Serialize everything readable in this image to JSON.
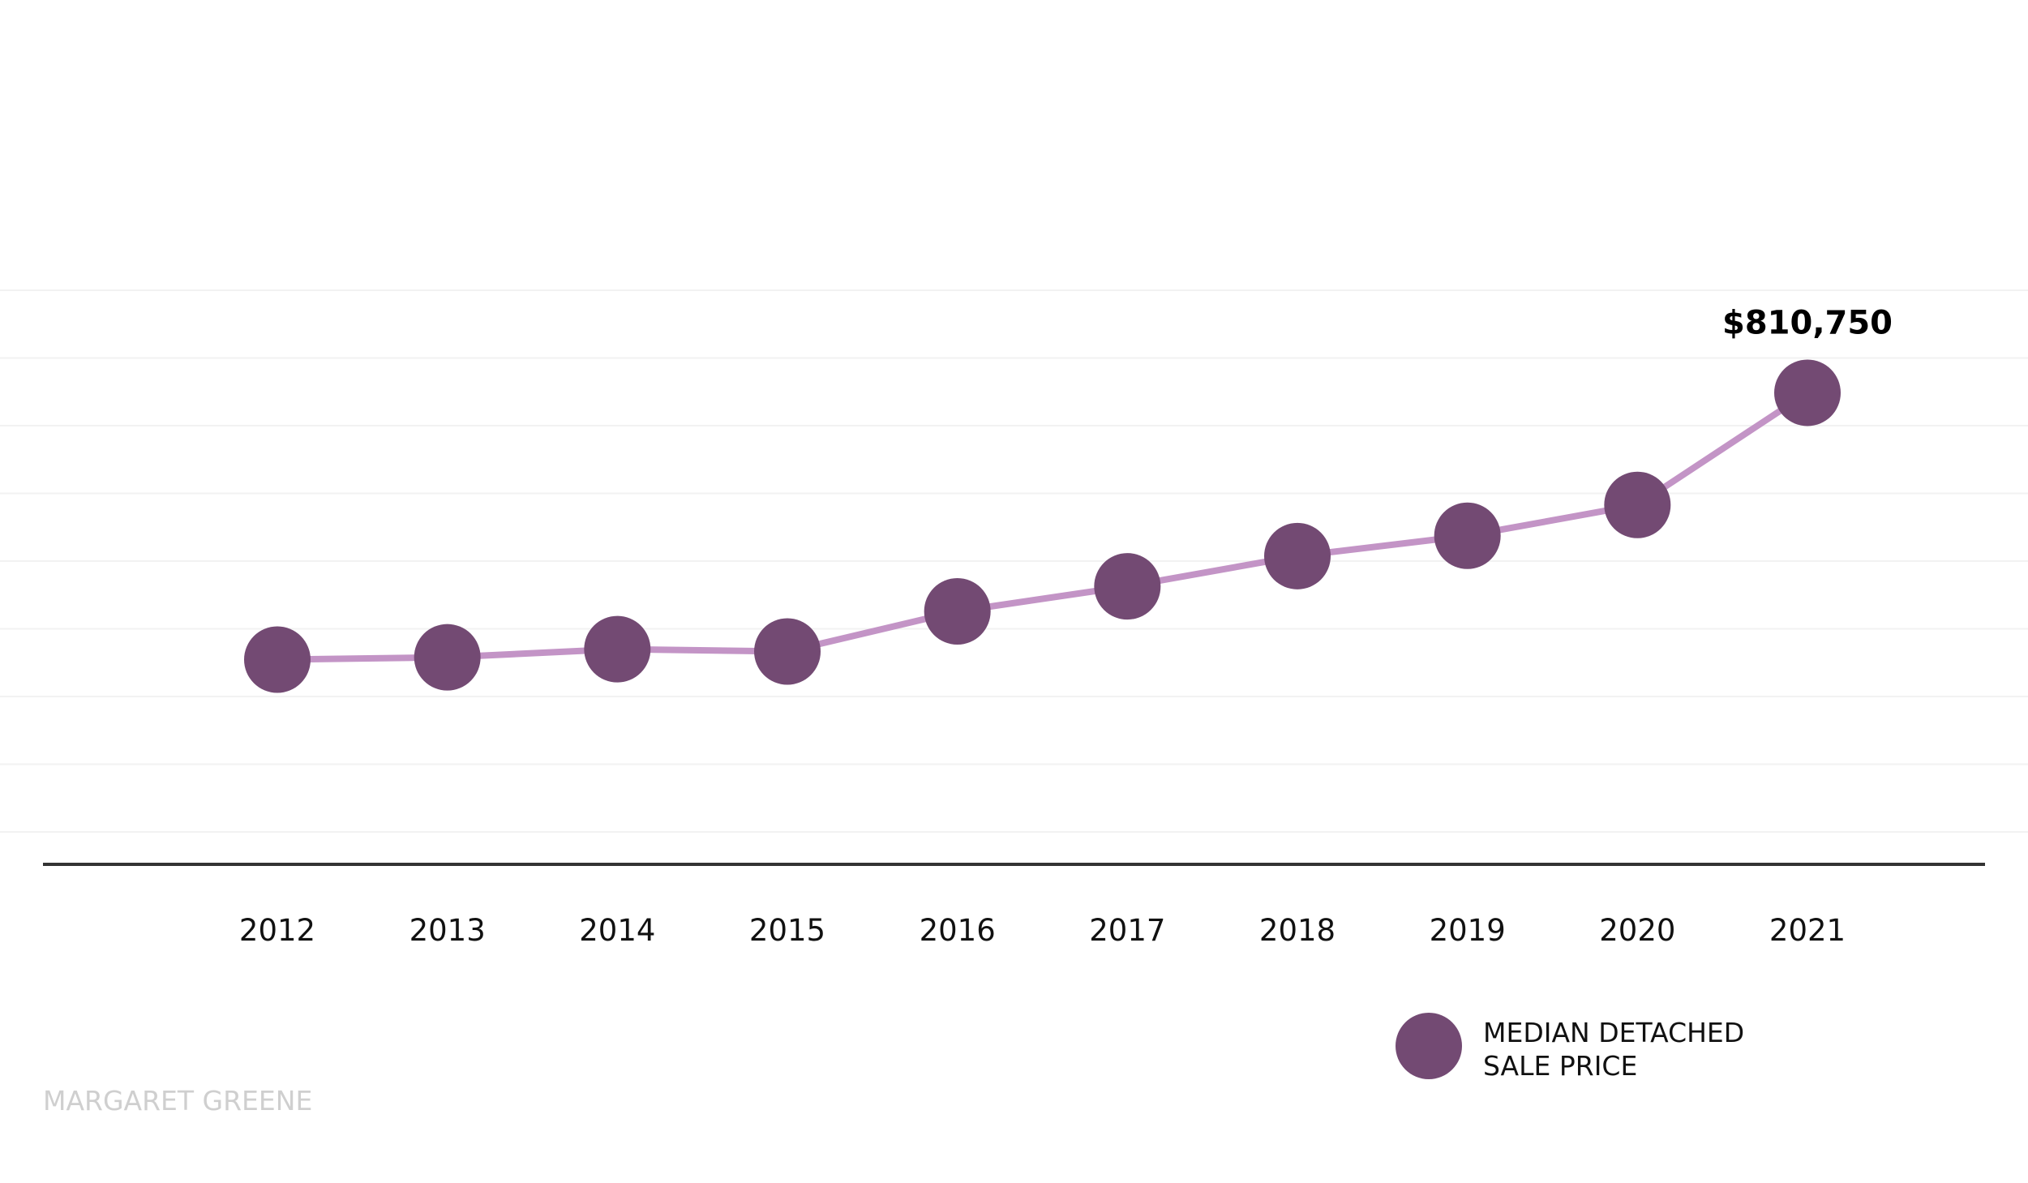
{
  "chart_data": {
    "type": "line",
    "title": "",
    "xlabel": "",
    "ylabel": "",
    "categories": [
      "2012",
      "2013",
      "2014",
      "2015",
      "2016",
      "2017",
      "2018",
      "2019",
      "2020",
      "2021"
    ],
    "series": [
      {
        "name": "MEDIAN DETACHED SALE PRICE",
        "values": [
          352000,
          356000,
          370000,
          366000,
          435000,
          478000,
          530000,
          565000,
          618000,
          810750
        ]
      }
    ],
    "ylim": [
      0,
      1100000
    ],
    "grid": true,
    "legend_position": "bottom-right",
    "annotations": [
      {
        "category": "2021",
        "text": "$810,750"
      }
    ],
    "legend": {
      "lines": [
        "MEDIAN DETACHED",
        "SALE PRICE"
      ]
    },
    "credit": "MARGARET GREENE",
    "colors": {
      "marker": "#734a73",
      "line": "#c394c6",
      "axis": "#333333",
      "grid": "#f2f2f2"
    }
  }
}
